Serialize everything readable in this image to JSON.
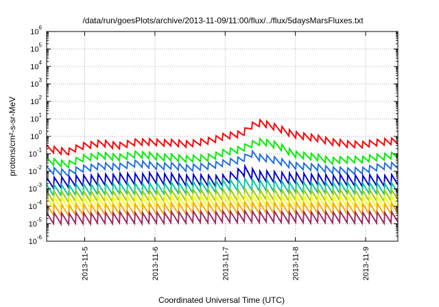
{
  "chart_data": {
    "type": "line",
    "title": "/data/run/goesPlots/archive/2013-11-09/11:00/flux/../flux/5daysMarsFluxes.txt",
    "xlabel": "Coordinated Universal Time (UTC)",
    "ylabel": "protons/cm²-s-sr-MeV",
    "yscale": "log",
    "ylim": [
      1e-06,
      1000000.0
    ],
    "y_ticks": [
      {
        "value": 1e-06,
        "base": "10",
        "exp": "-6"
      },
      {
        "value": 1e-05,
        "base": "10",
        "exp": "-5"
      },
      {
        "value": 0.0001,
        "base": "10",
        "exp": "-4"
      },
      {
        "value": 0.001,
        "base": "10",
        "exp": "-3"
      },
      {
        "value": 0.01,
        "base": "10",
        "exp": "-2"
      },
      {
        "value": 0.1,
        "base": "10",
        "exp": "-1"
      },
      {
        "value": 1,
        "base": "10",
        "exp": "0"
      },
      {
        "value": 10.0,
        "base": "10",
        "exp": "1"
      },
      {
        "value": 100.0,
        "base": "10",
        "exp": "2"
      },
      {
        "value": 1000.0,
        "base": "10",
        "exp": "3"
      },
      {
        "value": 10000.0,
        "base": "10",
        "exp": "4"
      },
      {
        "value": 100000.0,
        "base": "10",
        "exp": "5"
      },
      {
        "value": 1000000.0,
        "base": "10",
        "exp": "6"
      }
    ],
    "xlim": [
      "2013-11-04T11:00",
      "2013-11-09T11:00"
    ],
    "x_ticks": [
      "2013-11-5",
      "2013-11-6",
      "2013-11-7",
      "2013-11-8",
      "2013-11-9"
    ],
    "grid": true,
    "legend": "none",
    "series": [
      {
        "color": "#ff0000",
        "values": [
          [
            "2013-11-04T11:00",
            0.2
          ],
          [
            "2013-11-04T18:00",
            0.13
          ],
          [
            "2013-11-05T00:00",
            0.3
          ],
          [
            "2013-11-05T06:00",
            0.4
          ],
          [
            "2013-11-05T12:00",
            0.28
          ],
          [
            "2013-11-05T18:00",
            0.5
          ],
          [
            "2013-11-06T00:00",
            0.45
          ],
          [
            "2013-11-06T06:00",
            0.42
          ],
          [
            "2013-11-06T12:00",
            0.36
          ],
          [
            "2013-11-06T18:00",
            0.55
          ],
          [
            "2013-11-07T00:00",
            1.0
          ],
          [
            "2013-11-07T06:00",
            1.5
          ],
          [
            "2013-11-07T09:00",
            4.0
          ],
          [
            "2013-11-07T12:00",
            6.0
          ],
          [
            "2013-11-07T18:00",
            3.0
          ],
          [
            "2013-11-08T00:00",
            1.2
          ],
          [
            "2013-11-08T06:00",
            0.85
          ],
          [
            "2013-11-08T12:00",
            0.5
          ],
          [
            "2013-11-08T18:00",
            0.35
          ],
          [
            "2013-11-09T00:00",
            0.35
          ],
          [
            "2013-11-09T06:00",
            0.5
          ],
          [
            "2013-11-09T11:00",
            0.5
          ]
        ]
      },
      {
        "color": "#00ee00",
        "values": [
          [
            "2013-11-04T11:00",
            0.04
          ],
          [
            "2013-11-04T18:00",
            0.025
          ],
          [
            "2013-11-05T00:00",
            0.06
          ],
          [
            "2013-11-05T06:00",
            0.08
          ],
          [
            "2013-11-05T12:00",
            0.06
          ],
          [
            "2013-11-05T18:00",
            0.1
          ],
          [
            "2013-11-06T00:00",
            0.07
          ],
          [
            "2013-11-06T06:00",
            0.06
          ],
          [
            "2013-11-06T12:00",
            0.05
          ],
          [
            "2013-11-06T18:00",
            0.06
          ],
          [
            "2013-11-07T00:00",
            0.12
          ],
          [
            "2013-11-07T06:00",
            0.2
          ],
          [
            "2013-11-07T09:00",
            0.35
          ],
          [
            "2013-11-07T12:00",
            0.5
          ],
          [
            "2013-11-07T18:00",
            0.3
          ],
          [
            "2013-11-08T00:00",
            0.09
          ],
          [
            "2013-11-08T06:00",
            0.07
          ],
          [
            "2013-11-08T12:00",
            0.04
          ],
          [
            "2013-11-08T18:00",
            0.045
          ],
          [
            "2013-11-09T00:00",
            0.05
          ],
          [
            "2013-11-09T06:00",
            0.07
          ],
          [
            "2013-11-09T11:00",
            0.08
          ]
        ]
      },
      {
        "color": "#1e6fe0",
        "values": [
          [
            "2013-11-04T11:00",
            0.012
          ],
          [
            "2013-11-04T18:00",
            0.008
          ],
          [
            "2013-11-05T00:00",
            0.015
          ],
          [
            "2013-11-05T06:00",
            0.02
          ],
          [
            "2013-11-05T12:00",
            0.018
          ],
          [
            "2013-11-05T18:00",
            0.03
          ],
          [
            "2013-11-06T00:00",
            0.02
          ],
          [
            "2013-11-06T06:00",
            0.02
          ],
          [
            "2013-11-06T12:00",
            0.015
          ],
          [
            "2013-11-06T18:00",
            0.02
          ],
          [
            "2013-11-07T00:00",
            0.03
          ],
          [
            "2013-11-07T06:00",
            0.05
          ],
          [
            "2013-11-07T09:00",
            0.1
          ],
          [
            "2013-11-07T12:00",
            0.06
          ],
          [
            "2013-11-07T18:00",
            0.04
          ],
          [
            "2013-11-08T00:00",
            0.02
          ],
          [
            "2013-11-08T06:00",
            0.018
          ],
          [
            "2013-11-08T12:00",
            0.012
          ],
          [
            "2013-11-08T18:00",
            0.01
          ],
          [
            "2013-11-09T00:00",
            0.012
          ],
          [
            "2013-11-09T06:00",
            0.02
          ],
          [
            "2013-11-09T11:00",
            0.02
          ]
        ]
      },
      {
        "color": "#0000cc",
        "values": [
          [
            "2013-11-04T11:00",
            0.002
          ],
          [
            "2013-11-05T00:00",
            0.003
          ],
          [
            "2013-11-05T12:00",
            0.0035
          ],
          [
            "2013-11-06T00:00",
            0.004
          ],
          [
            "2013-11-06T12:00",
            0.003
          ],
          [
            "2013-11-07T00:00",
            0.003
          ],
          [
            "2013-11-07T06:00",
            0.01
          ],
          [
            "2013-11-07T12:00",
            0.005
          ],
          [
            "2013-11-08T00:00",
            0.004
          ],
          [
            "2013-11-08T12:00",
            0.003
          ],
          [
            "2013-11-09T00:00",
            0.003
          ],
          [
            "2013-11-09T11:00",
            0.003
          ]
        ]
      },
      {
        "color": "#00c8a0",
        "values": [
          [
            "2013-11-04T11:00",
            0.0008
          ],
          [
            "2013-11-05T12:00",
            0.001
          ],
          [
            "2013-11-06T12:00",
            0.0011
          ],
          [
            "2013-11-07T06:00",
            0.0018
          ],
          [
            "2013-11-08T00:00",
            0.0012
          ],
          [
            "2013-11-09T11:00",
            0.001
          ]
        ]
      },
      {
        "color": "#99cc00",
        "values": [
          [
            "2013-11-04T11:00",
            0.00035
          ],
          [
            "2013-11-06T00:00",
            0.0004
          ],
          [
            "2013-11-07T06:00",
            0.00045
          ],
          [
            "2013-11-09T11:00",
            0.0004
          ]
        ]
      },
      {
        "color": "#ffff00",
        "values": [
          [
            "2013-11-04T11:00",
            0.00016
          ],
          [
            "2013-11-06T00:00",
            0.00018
          ],
          [
            "2013-11-07T06:00",
            0.0002
          ],
          [
            "2013-11-09T11:00",
            0.00018
          ]
        ]
      },
      {
        "color": "#ffa500",
        "values": [
          [
            "2013-11-04T11:00",
            6e-05
          ],
          [
            "2013-11-06T00:00",
            7e-05
          ],
          [
            "2013-11-07T06:00",
            8e-05
          ],
          [
            "2013-11-09T11:00",
            7e-05
          ]
        ]
      },
      {
        "color": "#a02860",
        "values": [
          [
            "2013-11-04T11:00",
            2e-05
          ],
          [
            "2013-11-06T00:00",
            2.2e-05
          ],
          [
            "2013-11-07T06:00",
            2.5e-05
          ],
          [
            "2013-11-09T11:00",
            2.2e-05
          ]
        ]
      }
    ]
  }
}
